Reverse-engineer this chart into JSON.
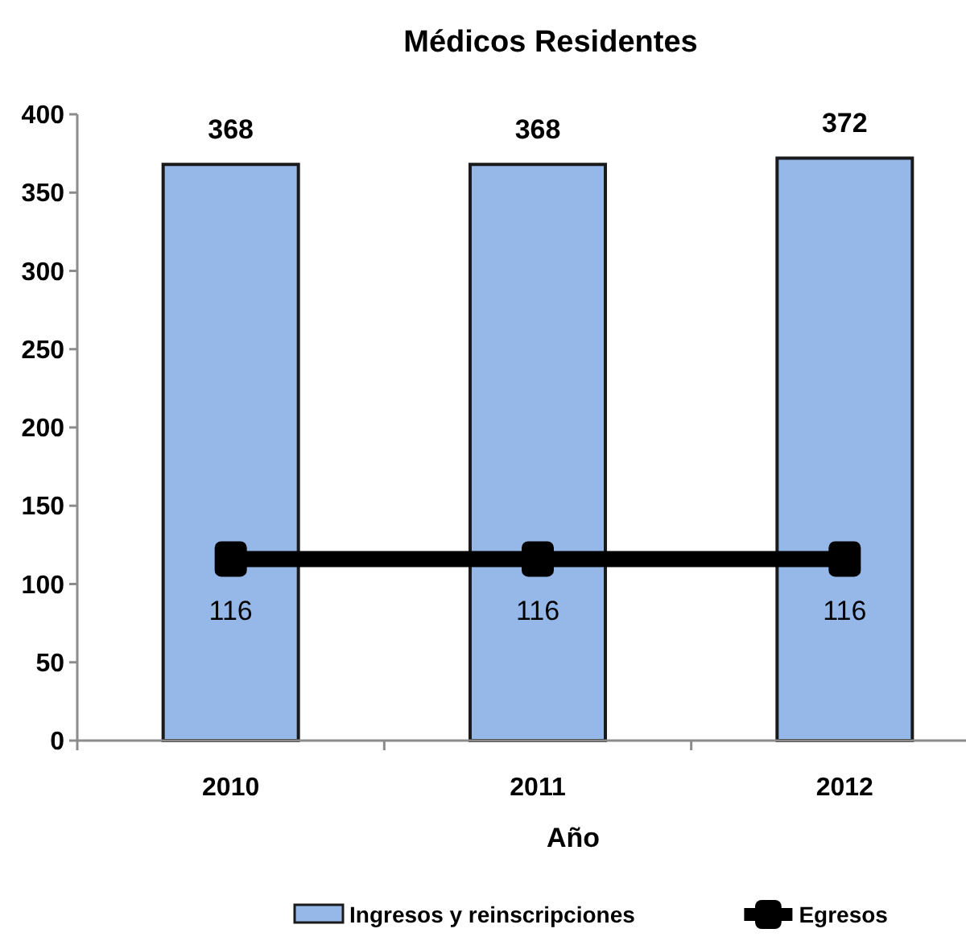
{
  "chart_data": {
    "type": "bar",
    "title": "Médicos Residentes",
    "xlabel": "Año",
    "categories": [
      "2010",
      "2011",
      "2012"
    ],
    "series": [
      {
        "name": "Ingresos y reinscripciones",
        "color": "#95b8e8",
        "values": [
          368,
          368,
          372
        ]
      },
      {
        "name": "Egresos",
        "type": "line",
        "color": "#000000",
        "values": [
          116,
          116,
          116
        ],
        "marker": "square",
        "line_style": "solid"
      }
    ],
    "ylim": [
      0,
      400
    ],
    "yticks": [
      0,
      50,
      100,
      150,
      200,
      250,
      300,
      350,
      400
    ],
    "grid": false,
    "legend": "bottom",
    "data_labels": true
  }
}
